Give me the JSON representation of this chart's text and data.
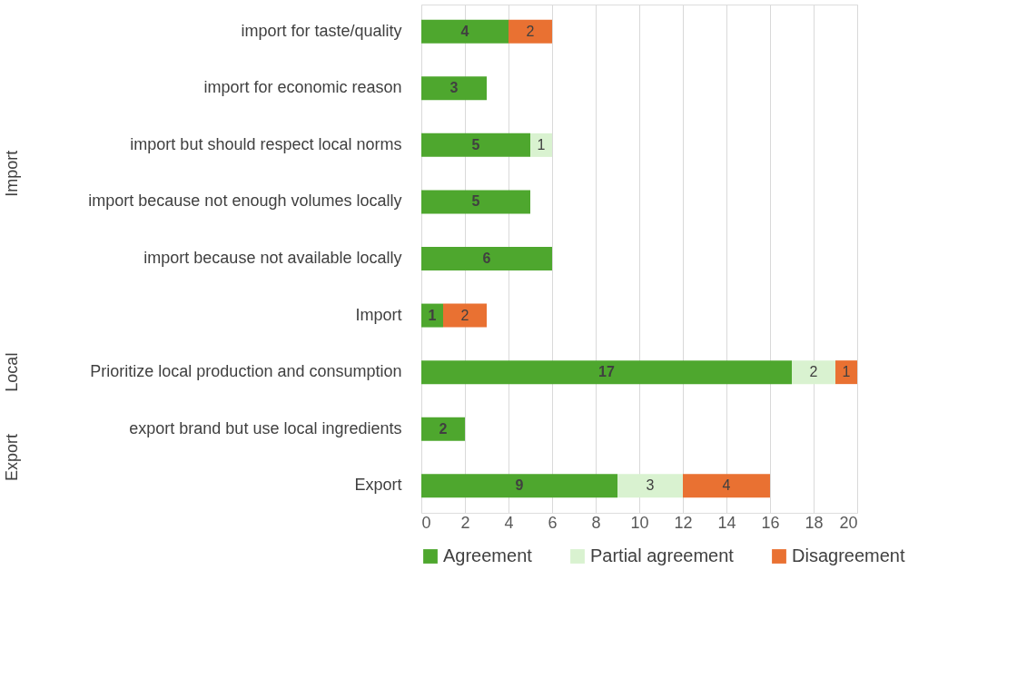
{
  "chart_data": {
    "type": "bar",
    "orientation": "horizontal",
    "stacked": true,
    "categories": [
      "import for taste/quality",
      "import for economic reason",
      "import but should respect local norms",
      "import because not enough volumes locally",
      "import because not available locally",
      "Import",
      "Prioritize local production and consumption",
      "export brand but use local ingredients",
      "Export"
    ],
    "series": [
      {
        "name": "Agreement",
        "color": "#4ea72e",
        "values": [
          4,
          3,
          5,
          5,
          6,
          1,
          17,
          2,
          9
        ]
      },
      {
        "name": "Partial agreement",
        "color": "#d9f2d0",
        "values": [
          null,
          null,
          1,
          null,
          null,
          null,
          2,
          null,
          3
        ]
      },
      {
        "name": "Disagreement",
        "color": "#e97132",
        "values": [
          2,
          null,
          null,
          null,
          null,
          2,
          1,
          null,
          4
        ]
      }
    ],
    "xlim": [
      0,
      20
    ],
    "xticks": [
      0,
      2,
      4,
      6,
      8,
      10,
      12,
      14,
      16,
      18,
      20
    ],
    "grid": "x",
    "legend": "bottom",
    "data_labels": true,
    "annotations": [
      "Import",
      "Local",
      "Export"
    ]
  }
}
